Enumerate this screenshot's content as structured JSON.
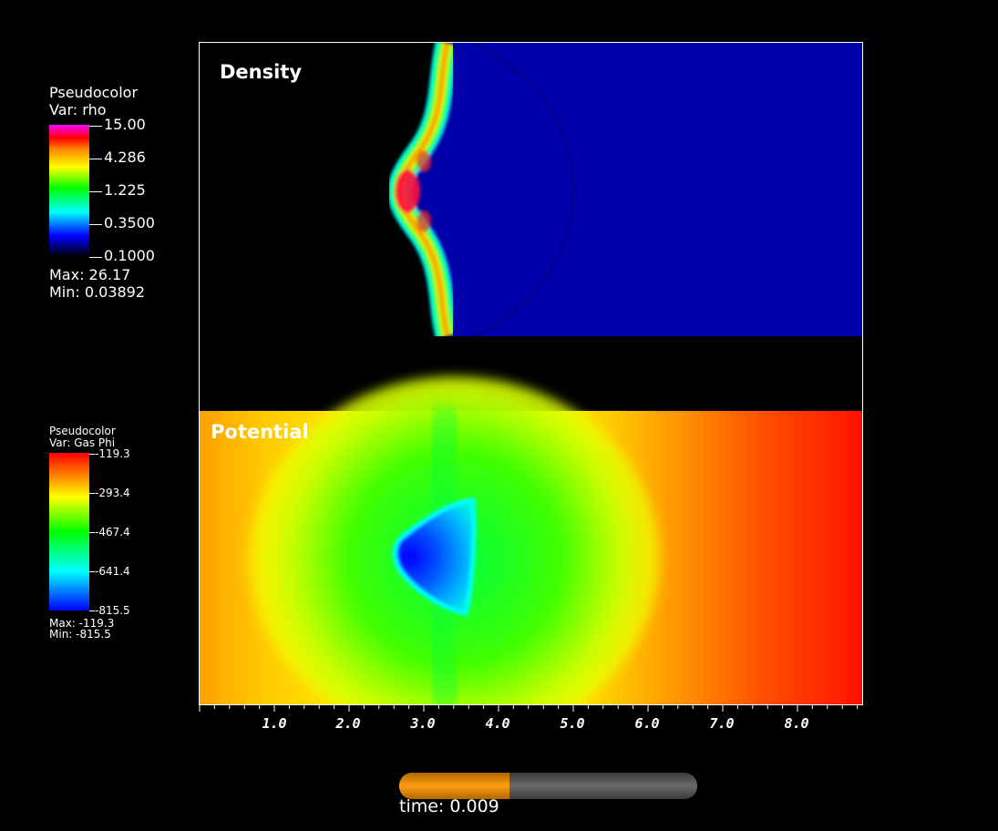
{
  "legend_density": {
    "title": "Pseudocolor",
    "var_label": "Var: rho",
    "ticks": [
      "15.00",
      "4.286",
      "1.225",
      "0.3500",
      "0.1000"
    ],
    "max_label": "Max:  26.17",
    "min_label": "Min:  0.03892"
  },
  "legend_potential": {
    "title": "Pseudocolor",
    "var_label": "Var: Gas Phi",
    "ticks": [
      "-119.3",
      "-293.4",
      "-467.4",
      "-641.4",
      "-815.5"
    ],
    "max_label": "Max: -119.3",
    "min_label": "Min: -815.5"
  },
  "panels": {
    "top_title": "Density",
    "bottom_title": "Potential"
  },
  "x_axis": {
    "tick_labels": [
      "1.0",
      "2.0",
      "3.0",
      "4.0",
      "5.0",
      "6.0",
      "7.0",
      "8.0"
    ],
    "range": [
      0,
      8.9
    ]
  },
  "time_slider": {
    "label": "time: 0.009",
    "progress": 0.37
  },
  "colors": {
    "background": "#000000",
    "density_ambient": "#0000aa",
    "slider_fill": "#ff9c10"
  }
}
